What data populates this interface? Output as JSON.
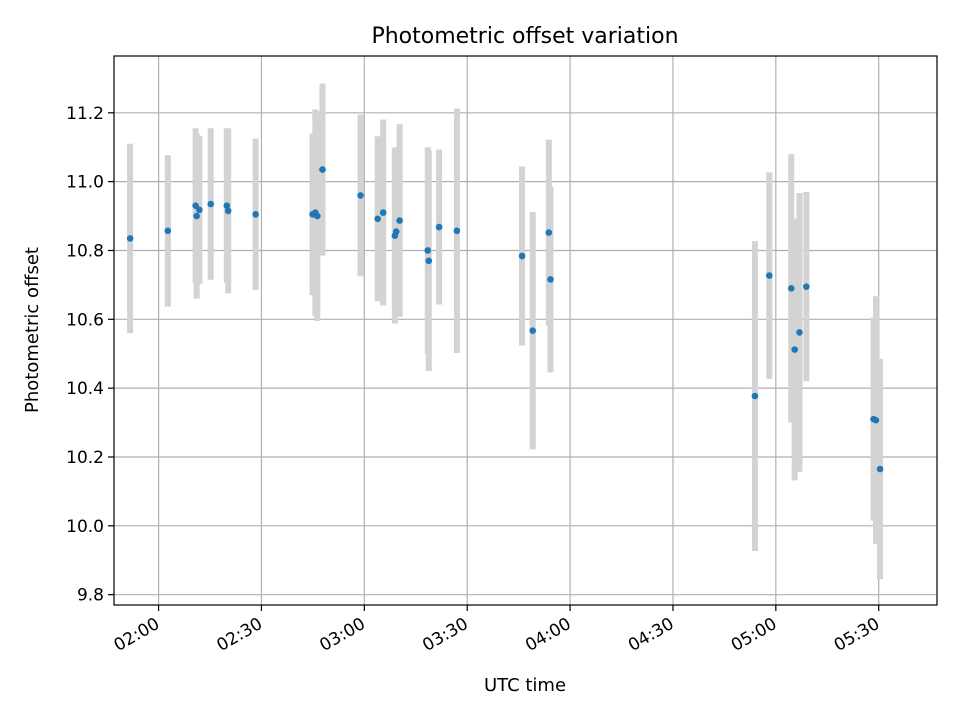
{
  "chart_data": {
    "type": "scatter",
    "title": "Photometric offset variation",
    "xlabel": "UTC time",
    "ylabel": "Photometric offset",
    "x_unit": "minutes since 00:00 UTC",
    "xlim": [
      107,
      347
    ],
    "ylim": [
      9.77,
      11.365
    ],
    "grid": true,
    "x_ticks": [
      {
        "value": 120,
        "label": "02:00"
      },
      {
        "value": 150,
        "label": "02:30"
      },
      {
        "value": 180,
        "label": "03:00"
      },
      {
        "value": 210,
        "label": "03:30"
      },
      {
        "value": 240,
        "label": "04:00"
      },
      {
        "value": 270,
        "label": "04:30"
      },
      {
        "value": 300,
        "label": "05:00"
      },
      {
        "value": 330,
        "label": "05:30"
      }
    ],
    "y_ticks": [
      {
        "value": 9.8,
        "label": "9.8"
      },
      {
        "value": 10.0,
        "label": "10.0"
      },
      {
        "value": 10.2,
        "label": "10.2"
      },
      {
        "value": 10.4,
        "label": "10.4"
      },
      {
        "value": 10.6,
        "label": "10.6"
      },
      {
        "value": 10.8,
        "label": "10.8"
      },
      {
        "value": 11.0,
        "label": "11.0"
      },
      {
        "value": 11.2,
        "label": "11.2"
      }
    ],
    "marker_color": "#1f77b4",
    "errorbar_color": "#d3d3d3",
    "points": [
      {
        "x": 111.7,
        "y": 10.835,
        "err": 0.275
      },
      {
        "x": 122.7,
        "y": 10.857,
        "err": 0.22
      },
      {
        "x": 130.8,
        "y": 10.93,
        "err": 0.225
      },
      {
        "x": 131.1,
        "y": 10.9,
        "err": 0.24
      },
      {
        "x": 131.9,
        "y": 10.918,
        "err": 0.215
      },
      {
        "x": 135.2,
        "y": 10.935,
        "err": 0.22
      },
      {
        "x": 139.9,
        "y": 10.93,
        "err": 0.225
      },
      {
        "x": 140.3,
        "y": 10.915,
        "err": 0.24
      },
      {
        "x": 148.3,
        "y": 10.905,
        "err": 0.22
      },
      {
        "x": 164.9,
        "y": 10.905,
        "err": 0.235
      },
      {
        "x": 165.7,
        "y": 10.91,
        "err": 0.3
      },
      {
        "x": 166.3,
        "y": 10.9,
        "err": 0.305
      },
      {
        "x": 167.8,
        "y": 11.035,
        "err": 0.25
      },
      {
        "x": 178.9,
        "y": 10.96,
        "err": 0.235
      },
      {
        "x": 183.9,
        "y": 10.892,
        "err": 0.24
      },
      {
        "x": 185.5,
        "y": 10.91,
        "err": 0.27
      },
      {
        "x": 188.9,
        "y": 10.843,
        "err": 0.255
      },
      {
        "x": 189.3,
        "y": 10.855,
        "err": 0.245
      },
      {
        "x": 190.3,
        "y": 10.887,
        "err": 0.28
      },
      {
        "x": 198.5,
        "y": 10.8,
        "err": 0.3
      },
      {
        "x": 198.8,
        "y": 10.77,
        "err": 0.32
      },
      {
        "x": 201.8,
        "y": 10.868,
        "err": 0.225
      },
      {
        "x": 207.0,
        "y": 10.857,
        "err": 0.355
      },
      {
        "x": 226.0,
        "y": 10.784,
        "err": 0.26
      },
      {
        "x": 229.1,
        "y": 10.567,
        "err": 0.345
      },
      {
        "x": 233.8,
        "y": 10.852,
        "err": 0.27
      },
      {
        "x": 234.3,
        "y": 10.716,
        "err": 0.27
      },
      {
        "x": 293.9,
        "y": 10.377,
        "err": 0.45
      },
      {
        "x": 298.1,
        "y": 10.727,
        "err": 0.3
      },
      {
        "x": 304.5,
        "y": 10.69,
        "err": 0.39
      },
      {
        "x": 305.5,
        "y": 10.512,
        "err": 0.38
      },
      {
        "x": 306.9,
        "y": 10.562,
        "err": 0.405
      },
      {
        "x": 308.9,
        "y": 10.695,
        "err": 0.275
      },
      {
        "x": 328.5,
        "y": 10.31,
        "err": 0.295
      },
      {
        "x": 329.2,
        "y": 10.307,
        "err": 0.36
      },
      {
        "x": 330.4,
        "y": 10.165,
        "err": 0.32
      }
    ]
  }
}
